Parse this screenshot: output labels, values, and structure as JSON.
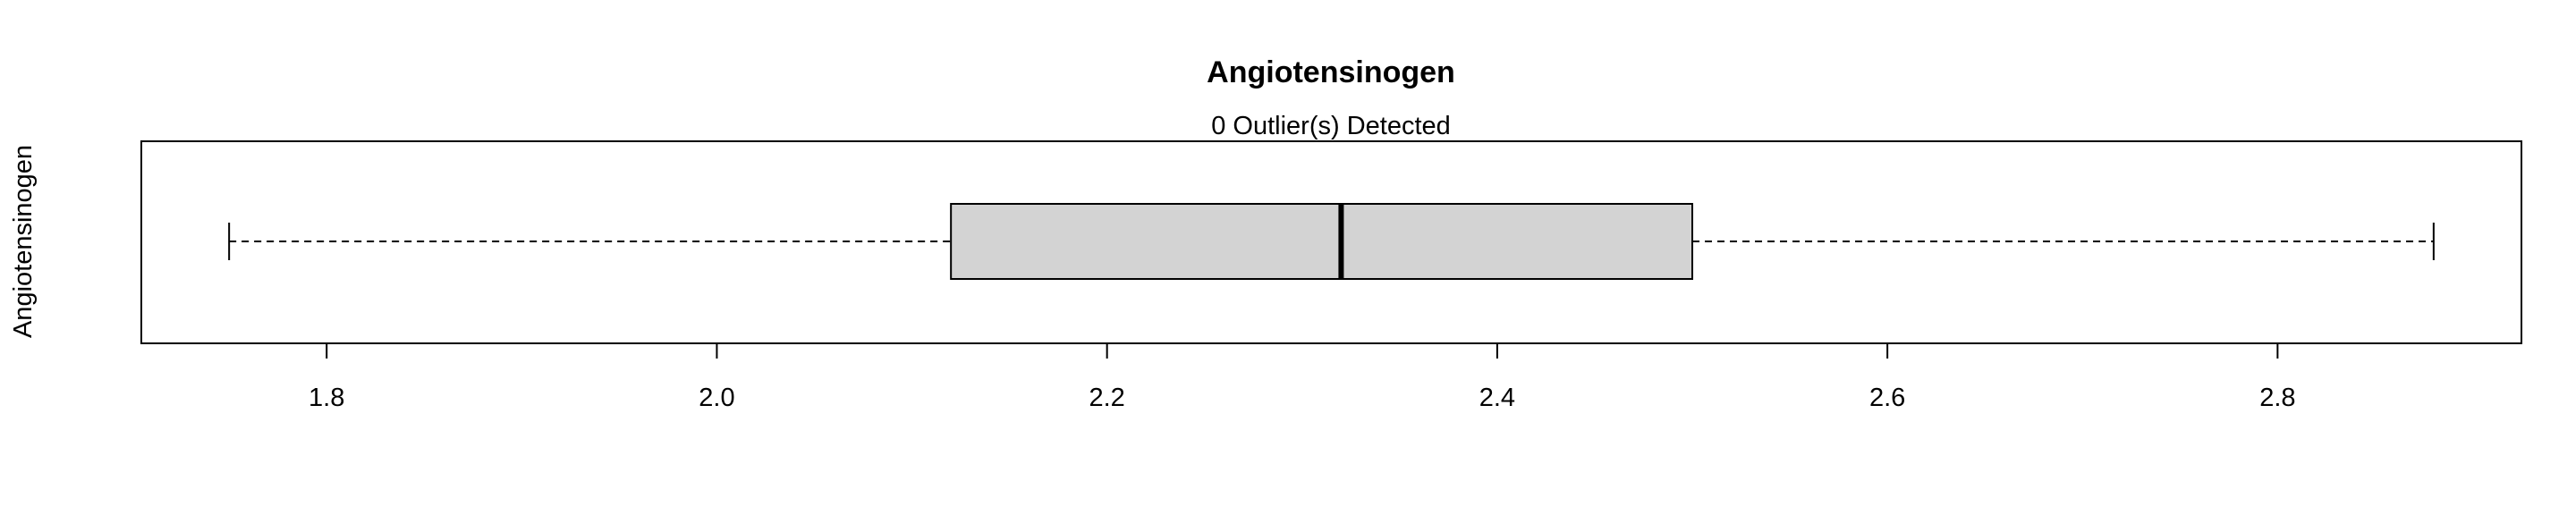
{
  "chart_data": {
    "type": "boxplot",
    "orientation": "horizontal",
    "title": "Angiotensinogen",
    "subtitle": "0 Outlier(s) Detected",
    "ylabel": "Angiotensinogen",
    "xlabel": "",
    "xlim": [
      1.705,
      2.925
    ],
    "ticks": [
      1.8,
      2.0,
      2.2,
      2.4,
      2.6,
      2.8
    ],
    "tick_labels": [
      "1.8",
      "2.0",
      "2.2",
      "2.4",
      "2.6",
      "2.8"
    ],
    "box": {
      "min": 1.75,
      "q1": 2.12,
      "median": 2.32,
      "q3": 2.5,
      "max": 2.88
    },
    "outliers": [],
    "box_fill": "#d3d3d3"
  }
}
